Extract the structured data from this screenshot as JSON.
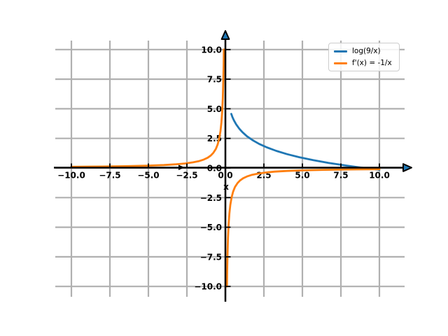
{
  "chart_data": {
    "type": "line",
    "title": "",
    "xlabel": "x",
    "ylabel": "",
    "xlim": [
      -11.1,
      11.6
    ],
    "ylim": [
      -11.3,
      10.8
    ],
    "grid": true,
    "grid_color": "#b0b0b0",
    "axis_color": "#000000",
    "background_color": "#ffffff",
    "xtick_values": [
      -10,
      -7.5,
      -5,
      -2.5,
      0,
      2.5,
      5,
      7.5,
      10
    ],
    "xtick_labels": [
      "−10.0",
      "−7.5",
      "−5.0",
      "−2.5",
      "0.0",
      "2.5",
      "5.0",
      "7.5",
      "10.0"
    ],
    "ytick_values": [
      10,
      7.5,
      5,
      2.5,
      0,
      -2.5,
      -5,
      -7.5,
      -10
    ],
    "ytick_labels": [
      "10.0",
      "7.5",
      "5.0",
      "2.5",
      "0.0",
      "−2.5",
      "−5.0",
      "−7.5",
      "−10.0"
    ],
    "legend": {
      "position": "upper-right",
      "entries": [
        {
          "label": "log(9/x)",
          "color": "#1f77b4"
        },
        {
          "label": "f'(x) = -1/x",
          "color": "#ff7f0e"
        }
      ]
    },
    "series": [
      {
        "name": "log(9/x)",
        "color": "#1f77b4",
        "segments": [
          [
            [
              0.38,
              4.57
            ],
            [
              0.45,
              4.32
            ],
            [
              0.55,
              4.03
            ],
            [
              0.7,
              3.68
            ],
            [
              0.9,
              3.32
            ],
            [
              1.1,
              3.03
            ],
            [
              1.4,
              2.68
            ],
            [
              1.8,
              2.32
            ],
            [
              2.2,
              2.03
            ],
            [
              2.7,
              1.74
            ],
            [
              3.3,
              1.45
            ],
            [
              4,
              1.17
            ],
            [
              4.8,
              0.91
            ],
            [
              5.7,
              0.66
            ],
            [
              6.7,
              0.43
            ],
            [
              7.8,
              0.21
            ],
            [
              9,
              0
            ],
            [
              10,
              -0.15
            ]
          ]
        ]
      },
      {
        "name": "f'(x) = -1/x",
        "color": "#ff7f0e",
        "segments": [
          [
            [
              -10,
              0.1
            ],
            [
              -8,
              0.125
            ],
            [
              -6.5,
              0.154
            ],
            [
              -5,
              0.2
            ],
            [
              -4,
              0.25
            ],
            [
              -3.2,
              0.313
            ],
            [
              -2.6,
              0.385
            ],
            [
              -2.1,
              0.476
            ],
            [
              -1.7,
              0.588
            ],
            [
              -1.4,
              0.714
            ],
            [
              -1.15,
              0.87
            ],
            [
              -0.95,
              1.053
            ],
            [
              -0.78,
              1.282
            ],
            [
              -0.62,
              1.613
            ],
            [
              -0.5,
              2
            ],
            [
              -0.4,
              2.5
            ],
            [
              -0.32,
              3.125
            ],
            [
              -0.26,
              3.846
            ],
            [
              -0.21,
              4.762
            ],
            [
              -0.17,
              5.882
            ],
            [
              -0.14,
              7.143
            ],
            [
              -0.115,
              8.696
            ],
            [
              -0.1,
              10
            ]
          ],
          [
            [
              0.1,
              -10
            ],
            [
              0.115,
              -8.696
            ],
            [
              0.14,
              -7.143
            ],
            [
              0.17,
              -5.882
            ],
            [
              0.21,
              -4.762
            ],
            [
              0.26,
              -3.846
            ],
            [
              0.32,
              -3.125
            ],
            [
              0.4,
              -2.5
            ],
            [
              0.5,
              -2
            ],
            [
              0.62,
              -1.613
            ],
            [
              0.78,
              -1.282
            ],
            [
              0.95,
              -1.053
            ],
            [
              1.15,
              -0.87
            ],
            [
              1.4,
              -0.714
            ],
            [
              1.7,
              -0.588
            ],
            [
              2.1,
              -0.476
            ],
            [
              2.6,
              -0.385
            ],
            [
              3.2,
              -0.31
            ],
            [
              4,
              -0.25
            ],
            [
              5,
              -0.2
            ],
            [
              6.5,
              -0.154
            ],
            [
              8,
              -0.125
            ],
            [
              10,
              -0.1
            ]
          ]
        ]
      }
    ]
  }
}
